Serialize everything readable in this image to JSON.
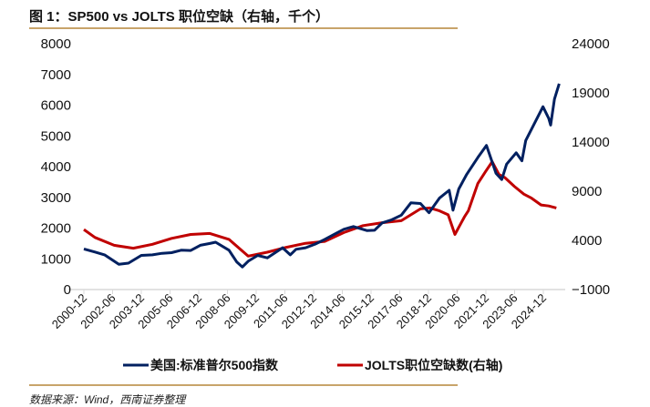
{
  "title": "图 1：SP500 vs JOLTS 职位空缺（右轴，千个）",
  "source": "数据来源：Wind，西南证券整理",
  "chart_data": {
    "type": "line",
    "title": "SP500 vs JOLTS 职位空缺（右轴，千个）",
    "x_tick_labels": [
      "2000-12",
      "2002-06",
      "2003-12",
      "2005-06",
      "2006-12",
      "2008-06",
      "2009-12",
      "2011-06",
      "2012-12",
      "2014-06",
      "2015-12",
      "2017-06",
      "2018-12",
      "2020-06",
      "2021-12",
      "2023-06",
      "2024-12"
    ],
    "y_left": {
      "ticks": [
        0,
        1000,
        2000,
        3000,
        4000,
        5000,
        6000,
        7000,
        8000
      ],
      "range": [
        0,
        8000
      ]
    },
    "y_right": {
      "ticks": [
        -1000,
        4000,
        9000,
        14000,
        19000,
        24000
      ],
      "range": [
        -1000,
        24000
      ]
    },
    "grid": false,
    "legend_position": "bottom",
    "series": [
      {
        "name": "美国:标准普尔500指数",
        "axis": "left",
        "color": "#002060",
        "x": [
          2000.92,
          2001.5,
          2002.0,
          2002.75,
          2003.25,
          2003.92,
          2004.5,
          2005.0,
          2005.5,
          2006.0,
          2006.5,
          2007.0,
          2007.5,
          2007.8,
          2008.5,
          2008.9,
          2009.2,
          2009.5,
          2010.0,
          2010.5,
          2011.3,
          2011.7,
          2012.0,
          2012.5,
          2013.0,
          2013.5,
          2014.0,
          2014.5,
          2015.0,
          2015.7,
          2016.1,
          2016.5,
          2017.0,
          2017.5,
          2018.0,
          2018.5,
          2018.95,
          2019.5,
          2020.0,
          2020.2,
          2020.5,
          2020.92,
          2021.5,
          2021.95,
          2022.45,
          2022.75,
          2023.0,
          2023.5,
          2023.8,
          2024.0,
          2024.5,
          2024.9,
          2025.2,
          2025.3,
          2025.5,
          2025.75
        ],
        "values": [
          1320,
          1220,
          1130,
          820,
          860,
          1110,
          1130,
          1180,
          1200,
          1280,
          1270,
          1440,
          1500,
          1540,
          1280,
          900,
          735,
          920,
          1110,
          1030,
          1360,
          1130,
          1310,
          1360,
          1480,
          1630,
          1800,
          1960,
          2050,
          1920,
          1930,
          2170,
          2270,
          2420,
          2820,
          2800,
          2500,
          2980,
          3230,
          2580,
          3270,
          3750,
          4300,
          4690,
          3780,
          3580,
          4080,
          4450,
          4190,
          4850,
          5460,
          5950,
          5570,
          5350,
          6200,
          6700
        ]
      },
      {
        "name": "JOLTS职位空缺数(右轴)",
        "axis": "right",
        "color": "#c00000",
        "x": [
          2000.92,
          2001.5,
          2002.5,
          2003.5,
          2004.5,
          2005.5,
          2006.5,
          2007.5,
          2008.5,
          2009.5,
          2010.5,
          2011.5,
          2012.5,
          2013.5,
          2014.5,
          2015.5,
          2016.5,
          2017.5,
          2018.5,
          2019.0,
          2019.5,
          2019.95,
          2020.3,
          2020.8,
          2021.0,
          2021.5,
          2021.9,
          2022.25,
          2022.6,
          2022.9,
          2023.4,
          2023.9,
          2024.3,
          2024.8,
          2025.2,
          2025.6
        ],
        "values": [
          5100,
          4300,
          3500,
          3200,
          3600,
          4200,
          4600,
          4700,
          4100,
          2400,
          2800,
          3300,
          3700,
          3900,
          4800,
          5500,
          5800,
          6000,
          7200,
          7300,
          7000,
          6600,
          4600,
          6400,
          7000,
          9800,
          11000,
          12000,
          10700,
          10400,
          9500,
          8700,
          8300,
          7600,
          7500,
          7300
        ]
      }
    ]
  }
}
